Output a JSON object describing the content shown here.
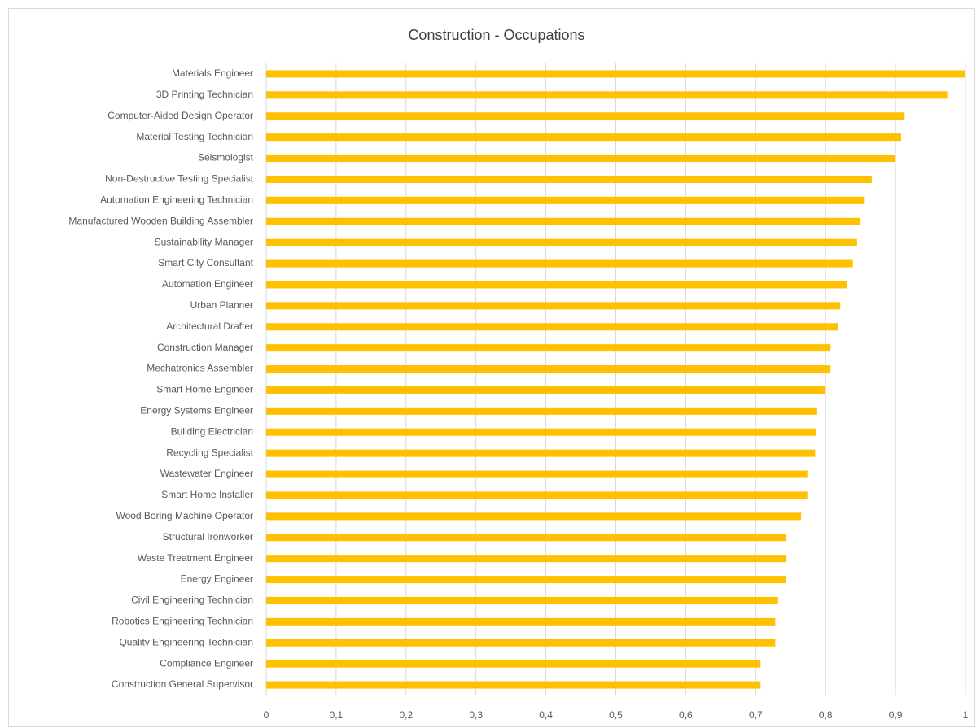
{
  "chart_data": {
    "type": "barh",
    "title": "Construction - Occupations",
    "categories": [
      "Materials Engineer",
      "3D Printing Technician",
      "Computer-Aided Design Operator",
      "Material Testing Technician",
      "Seismologist",
      "Non-Destructive Testing Specialist",
      "Automation Engineering Technician",
      "Manufactured Wooden Building Assembler",
      "Sustainability Manager",
      "Smart City Consultant",
      "Automation Engineer",
      "Urban Planner",
      "Architectural Drafter",
      "Construction Manager",
      "Mechatronics Assembler",
      "Smart Home Engineer",
      "Energy Systems Engineer",
      "Building Electrician",
      "Recycling Specialist",
      "Wastewater Engineer",
      "Smart Home Installer",
      "Wood Boring Machine Operator",
      "Structural Ironworker",
      "Waste Treatment Engineer",
      "Energy Engineer",
      "Civil Engineering Technician",
      "Robotics Engineering Technician",
      "Quality Engineering Technician",
      "Compliance Engineer",
      "Construction General Supervisor"
    ],
    "values": [
      1.0,
      0.974,
      0.913,
      0.908,
      0.9,
      0.866,
      0.856,
      0.85,
      0.845,
      0.839,
      0.83,
      0.821,
      0.818,
      0.807,
      0.807,
      0.799,
      0.788,
      0.787,
      0.785,
      0.775,
      0.775,
      0.765,
      0.744,
      0.744,
      0.743,
      0.732,
      0.728,
      0.728,
      0.707,
      0.707
    ],
    "color": "#ffc000",
    "xlim": [
      0,
      1
    ],
    "xticks": [
      0,
      {
        "value": 0.1,
        "label": "0,1"
      },
      {
        "value": 0.2,
        "label": "0,2"
      },
      {
        "value": 0.3,
        "label": "0,3"
      },
      {
        "value": 0.4,
        "label": "0,4"
      },
      {
        "value": 0.5,
        "label": "0,5"
      },
      {
        "value": 0.6,
        "label": "0,6"
      },
      {
        "value": 0.7,
        "label": "0,7"
      },
      {
        "value": 0.8,
        "label": "0,8"
      },
      {
        "value": 0.9,
        "label": "0,9"
      },
      1
    ],
    "grid": true
  }
}
